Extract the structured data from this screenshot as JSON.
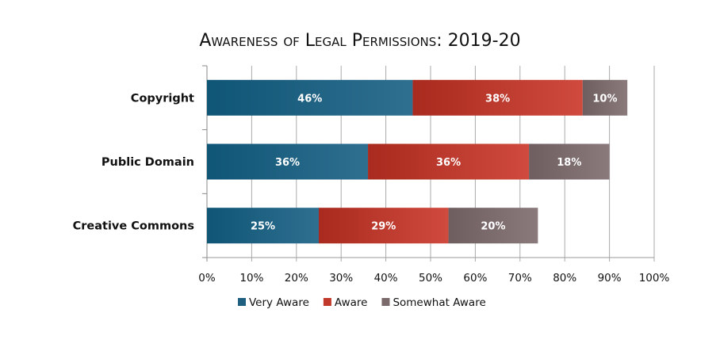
{
  "chart_data": {
    "type": "bar",
    "orientation": "horizontal",
    "stacked": true,
    "title": "Awareness of Legal Permissions: 2019-20",
    "categories": [
      "Copyright",
      "Public Domain",
      "Creative Commons"
    ],
    "series": [
      {
        "name": "Very Aware",
        "color": "#1f5f80",
        "values": [
          46,
          36,
          25
        ],
        "labels": [
          "46%",
          "36%",
          "25%"
        ]
      },
      {
        "name": "Aware",
        "color": "#c0392b",
        "values": [
          38,
          36,
          29
        ],
        "labels": [
          "38%",
          "36%",
          "29%"
        ]
      },
      {
        "name": "Somewhat Aware",
        "color": "#7a6a6c",
        "values": [
          10,
          18,
          20
        ],
        "labels": [
          "10%",
          "18%",
          "20%"
        ]
      }
    ],
    "xlim": [
      0,
      100
    ],
    "xticks": [
      "0%",
      "10%",
      "20%",
      "30%",
      "40%",
      "50%",
      "60%",
      "70%",
      "80%",
      "90%",
      "100%"
    ],
    "grid": true,
    "legend": "bottom"
  }
}
